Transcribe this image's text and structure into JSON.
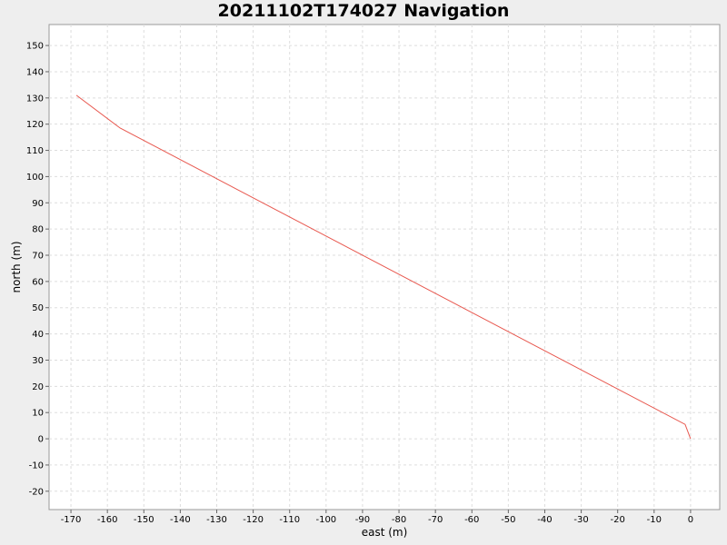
{
  "chart_data": {
    "type": "line",
    "title": "20211102T174027 Navigation",
    "xlabel": "east (m)",
    "ylabel": "north (m)",
    "xlim": [
      -176,
      8
    ],
    "ylim": [
      -27,
      158
    ],
    "xticks": [
      -170,
      -160,
      -150,
      -140,
      -130,
      -120,
      -110,
      -100,
      -90,
      -80,
      -70,
      -60,
      -50,
      -40,
      -30,
      -20,
      -10,
      0
    ],
    "yticks": [
      -20,
      -10,
      0,
      10,
      20,
      30,
      40,
      50,
      60,
      70,
      80,
      90,
      100,
      110,
      120,
      130,
      140,
      150
    ],
    "grid": true,
    "colors": {
      "series": "#e8584f",
      "grid": "#dddddd",
      "plot_bg": "#ffffff",
      "frame": "#999999"
    },
    "series": [
      {
        "x": [
          0,
          -1.5,
          -156.5,
          -168.5
        ],
        "y": [
          0,
          5.5,
          118.5,
          131
        ]
      }
    ]
  }
}
